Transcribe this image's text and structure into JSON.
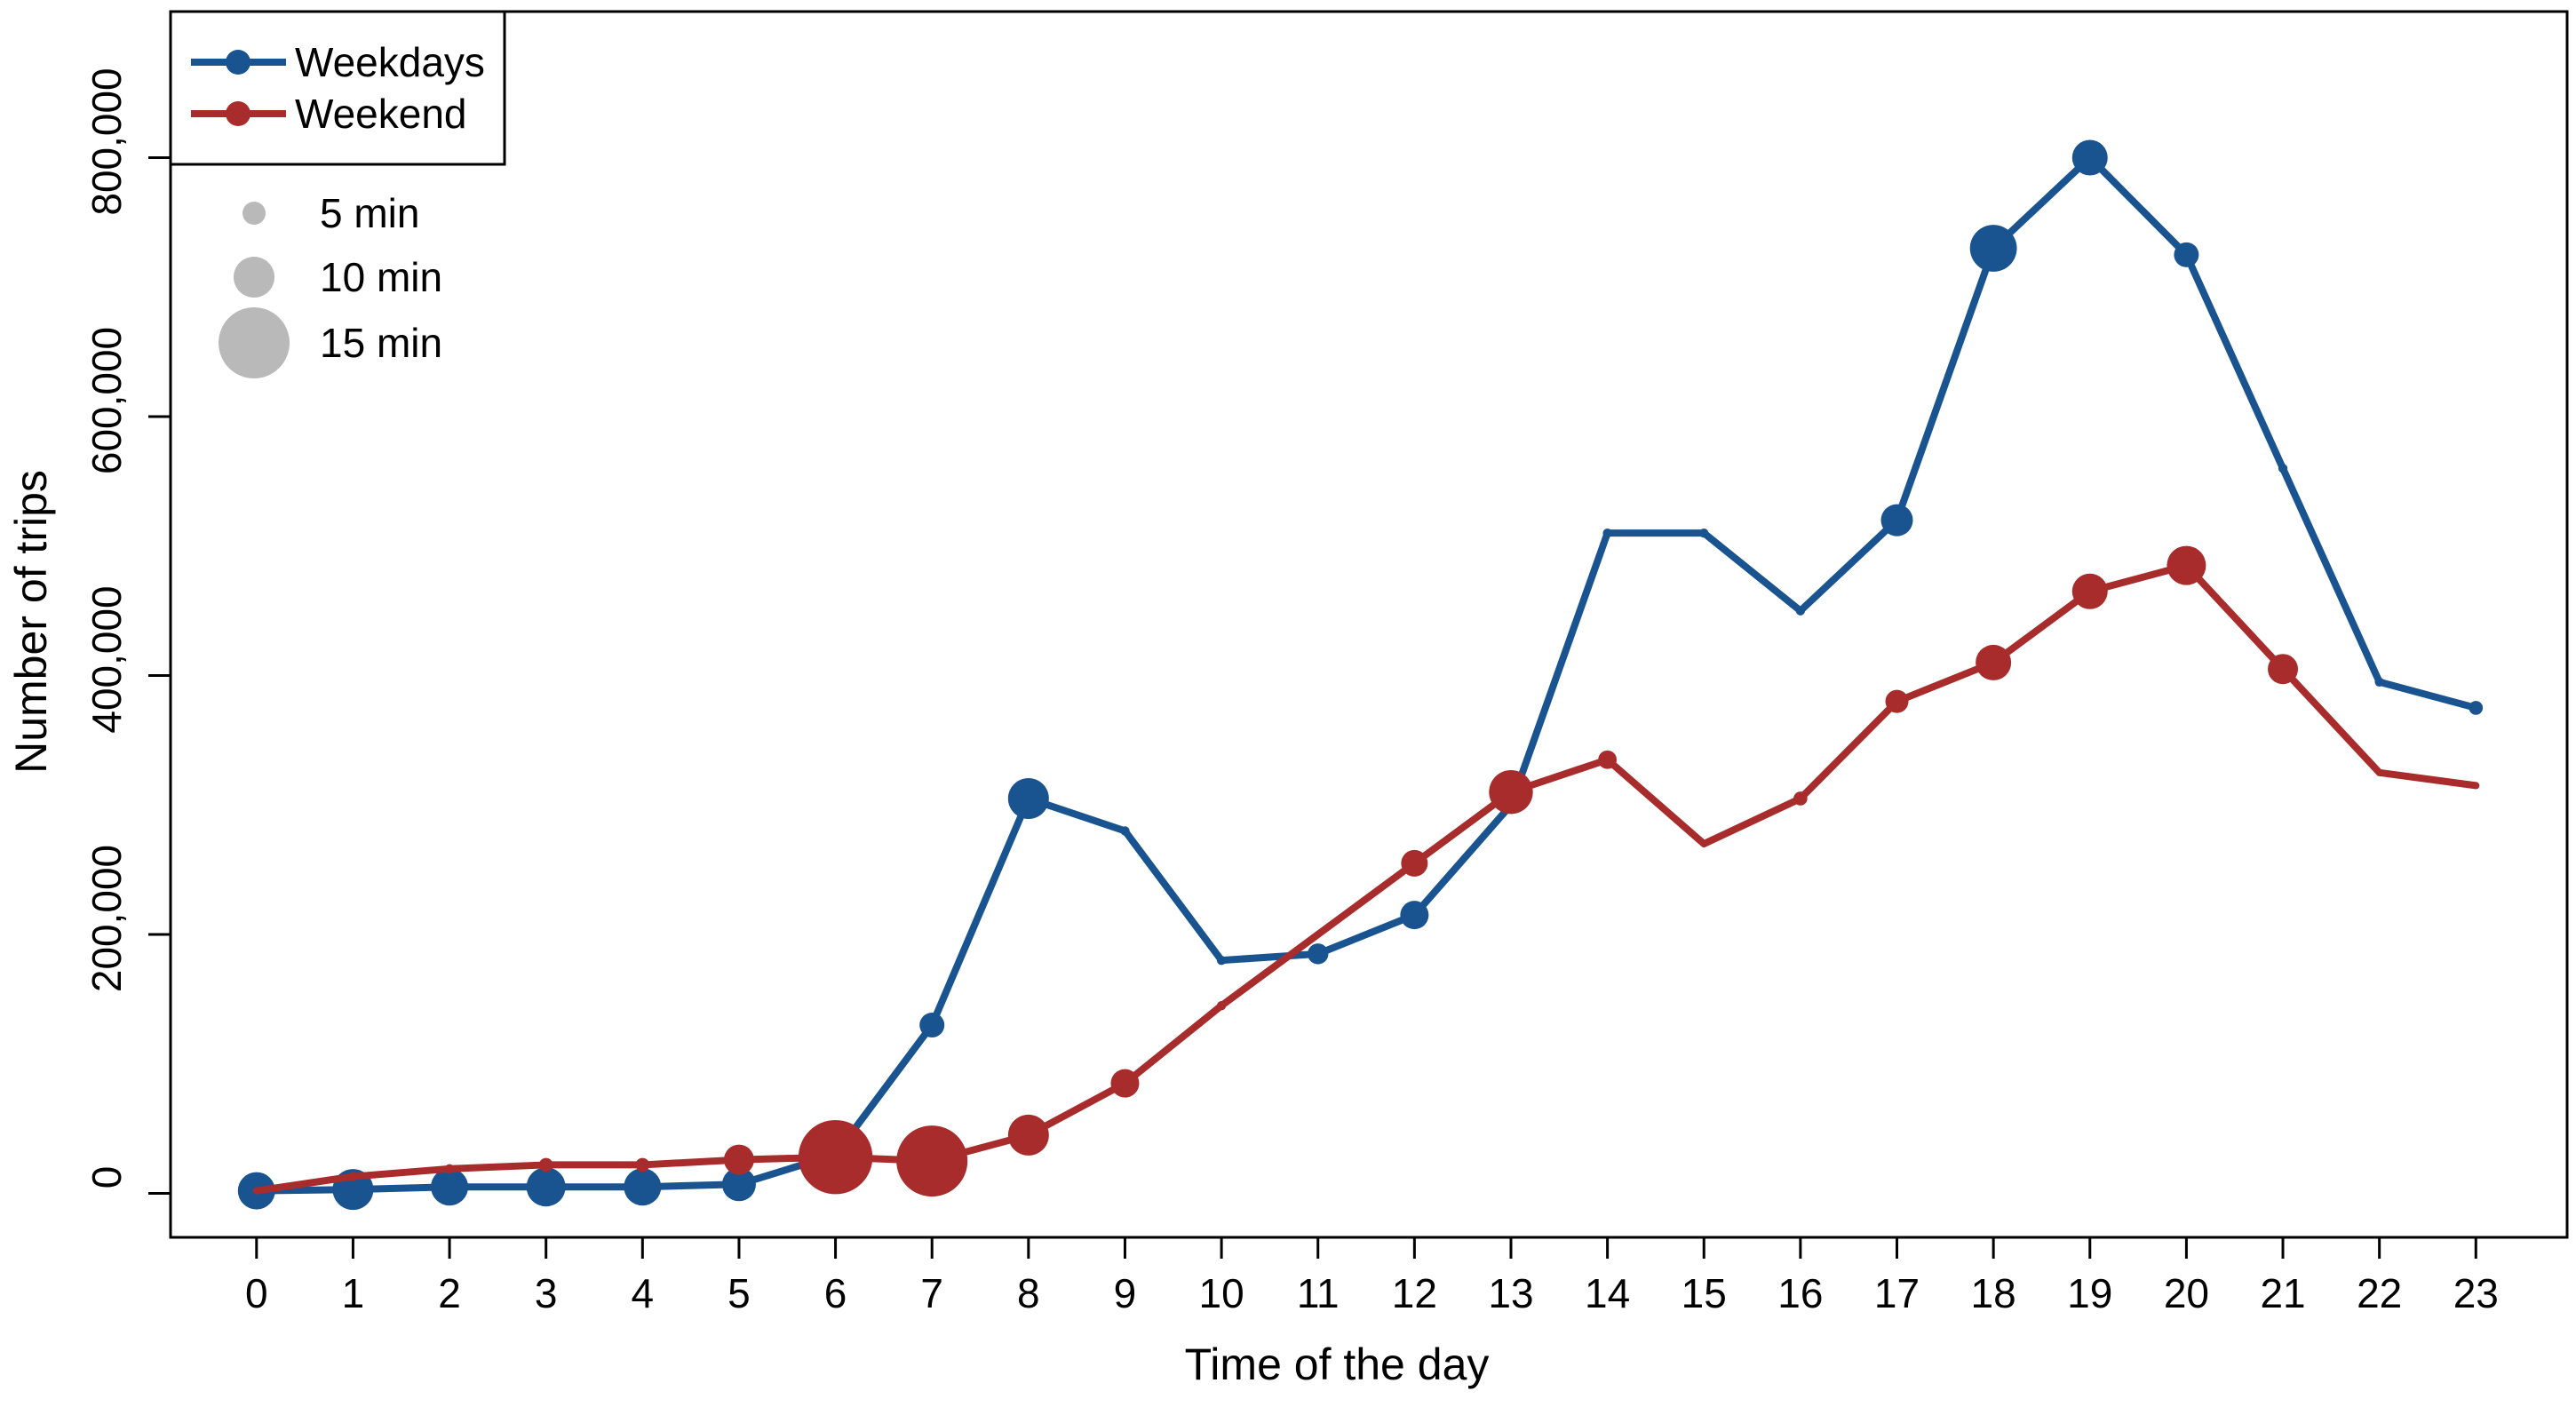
{
  "figure": {
    "x_axis_title": "Time of the day",
    "y_axis_title": "Number of trips",
    "colors": {
      "weekdays": "#1a5490",
      "weekend": "#a92c2c",
      "size_legend_gray": "#b9b9b9",
      "axis": "#000000",
      "background": "#ffffff"
    }
  },
  "legend": {
    "series_entries": [
      {
        "label": "Weekdays",
        "color_key": "weekdays"
      },
      {
        "label": "Weekend",
        "color_key": "weekend"
      }
    ],
    "size_entries": [
      {
        "label": "5 min",
        "minutes": 5
      },
      {
        "label": "10 min",
        "minutes": 10
      },
      {
        "label": "15 min",
        "minutes": 15
      }
    ]
  },
  "chart_data": {
    "type": "line",
    "subtype": "bubble-line",
    "title": "",
    "xlabel": "Time of the day",
    "ylabel": "Number of trips",
    "x": [
      0,
      1,
      2,
      3,
      4,
      5,
      6,
      7,
      8,
      9,
      10,
      11,
      12,
      13,
      14,
      15,
      16,
      17,
      18,
      19,
      20,
      21,
      22,
      23
    ],
    "x_tick_labels": [
      "0",
      "1",
      "2",
      "3",
      "4",
      "5",
      "6",
      "7",
      "8",
      "9",
      "10",
      "11",
      "12",
      "13",
      "14",
      "15",
      "16",
      "17",
      "18",
      "19",
      "20",
      "21",
      "22",
      "23"
    ],
    "y_ticks": [
      0,
      200000,
      400000,
      600000,
      800000
    ],
    "y_tick_labels": [
      "0",
      "200,000",
      "400,000",
      "600,000",
      "800,000"
    ],
    "xlim": [
      0,
      23
    ],
    "ylim": [
      0,
      800000
    ],
    "grid": false,
    "legend_position": "top-left",
    "series": [
      {
        "name": "Weekdays",
        "color_key": "weekdays",
        "values": [
          2000,
          3000,
          5000,
          5000,
          5000,
          7000,
          30000,
          130000,
          305000,
          280000,
          180000,
          185000,
          215000,
          300000,
          510000,
          510000,
          450000,
          520000,
          730000,
          800000,
          725000,
          560000,
          395000,
          375000
        ],
        "point_size_min": [
          9,
          10,
          9,
          9.5,
          9,
          8,
          5,
          5.5,
          10,
          2,
          2,
          4.5,
          6.5,
          3,
          2,
          2,
          2,
          7.5,
          11,
          8.5,
          5.5,
          2,
          2,
          3
        ]
      },
      {
        "name": "Weekend",
        "color_key": "weekend",
        "values": [
          2000,
          13000,
          19000,
          22000,
          22000,
          26000,
          28000,
          25000,
          45000,
          85000,
          145000,
          200000,
          255000,
          310000,
          335000,
          270000,
          305000,
          380000,
          410000,
          465000,
          485000,
          405000,
          325000,
          315000
        ],
        "point_size_min": [
          1.5,
          2,
          2,
          3,
          3,
          7,
          15.5,
          15,
          10,
          6.5,
          2,
          1.5,
          6,
          10.5,
          4,
          1.5,
          3,
          5,
          8.5,
          8.5,
          9.5,
          7,
          1.5,
          1.5
        ]
      }
    ],
    "point_size_scale": {
      "legend_minutes": [
        5,
        10,
        15
      ],
      "legend_radius_px": [
        13,
        23,
        40
      ]
    }
  }
}
